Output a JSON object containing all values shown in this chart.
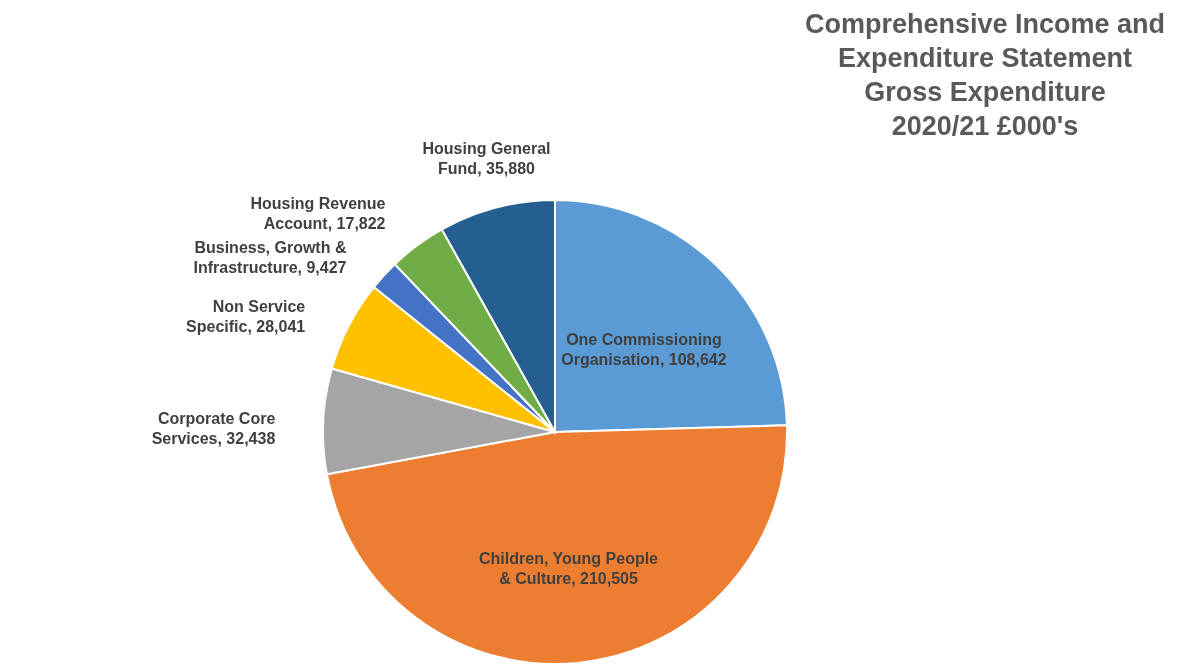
{
  "chart_data": {
    "type": "pie",
    "title": "Comprehensive Income and Expenditure Statement Gross Expenditure 2020/21 £000's",
    "categories": [
      "One Commissioning Organisation",
      "Children, Young People & Culture",
      "Corporate Core Services",
      "Non Service Specific",
      "Business, Growth & Infrastructure",
      "Housing Revenue Account",
      "Housing General Fund"
    ],
    "values": [
      108642,
      210505,
      32438,
      28041,
      9427,
      17822,
      35880
    ],
    "value_labels": [
      "108,642",
      "210,505",
      "32,438",
      "28,041",
      "9,427",
      "17,822",
      "35,880"
    ],
    "colors": [
      "#5b9bd5",
      "#ed7d31",
      "#a5a5a5",
      "#ffc000",
      "#4472c4",
      "#70ad47",
      "#255e91"
    ],
    "data_labels": true
  }
}
